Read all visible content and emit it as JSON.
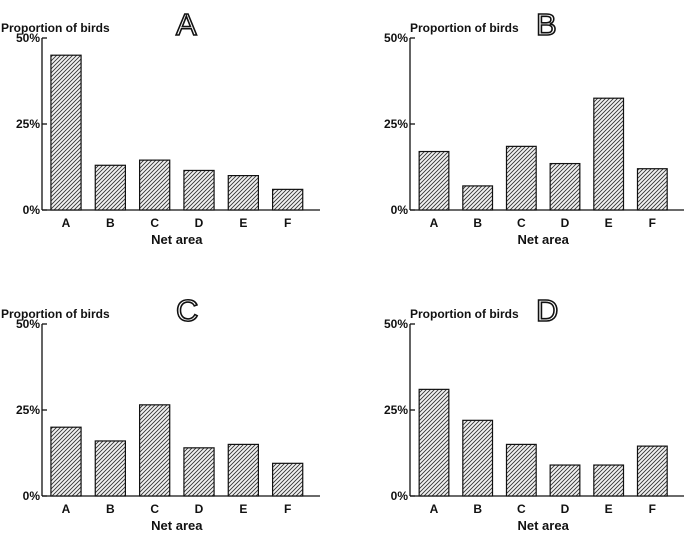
{
  "chart_data": [
    {
      "type": "bar",
      "panel_label": "A",
      "ylabel": "Proportion of birds",
      "xlabel": "Net area",
      "categories": [
        "A",
        "B",
        "C",
        "D",
        "E",
        "F"
      ],
      "values": [
        45,
        13,
        14.5,
        11.5,
        10,
        6
      ],
      "ylim": [
        0,
        50
      ],
      "yticks": [
        "0%",
        "25%",
        "50%"
      ],
      "grid": false,
      "legend": "none"
    },
    {
      "type": "bar",
      "panel_label": "B",
      "ylabel": "Proportion of birds",
      "xlabel": "Net area",
      "categories": [
        "A",
        "B",
        "C",
        "D",
        "E",
        "F"
      ],
      "values": [
        17,
        7,
        18.5,
        13.5,
        32.5,
        12
      ],
      "ylim": [
        0,
        50
      ],
      "yticks": [
        "0%",
        "25%",
        "50%"
      ],
      "grid": false,
      "legend": "none"
    },
    {
      "type": "bar",
      "panel_label": "C",
      "ylabel": "Proportion of birds",
      "xlabel": "Net area",
      "categories": [
        "A",
        "B",
        "C",
        "D",
        "E",
        "F"
      ],
      "values": [
        20,
        16,
        26.5,
        14,
        15,
        9.5
      ],
      "ylim": [
        0,
        50
      ],
      "yticks": [
        "0%",
        "25%",
        "50%"
      ],
      "grid": false,
      "legend": "none"
    },
    {
      "type": "bar",
      "panel_label": "D",
      "ylabel": "Proportion of birds",
      "xlabel": "Net area",
      "categories": [
        "A",
        "B",
        "C",
        "D",
        "E",
        "F"
      ],
      "values": [
        31,
        22,
        15,
        9,
        9,
        14.5
      ],
      "ylim": [
        0,
        50
      ],
      "yticks": [
        "0%",
        "25%",
        "50%"
      ],
      "grid": false,
      "legend": "none"
    }
  ]
}
